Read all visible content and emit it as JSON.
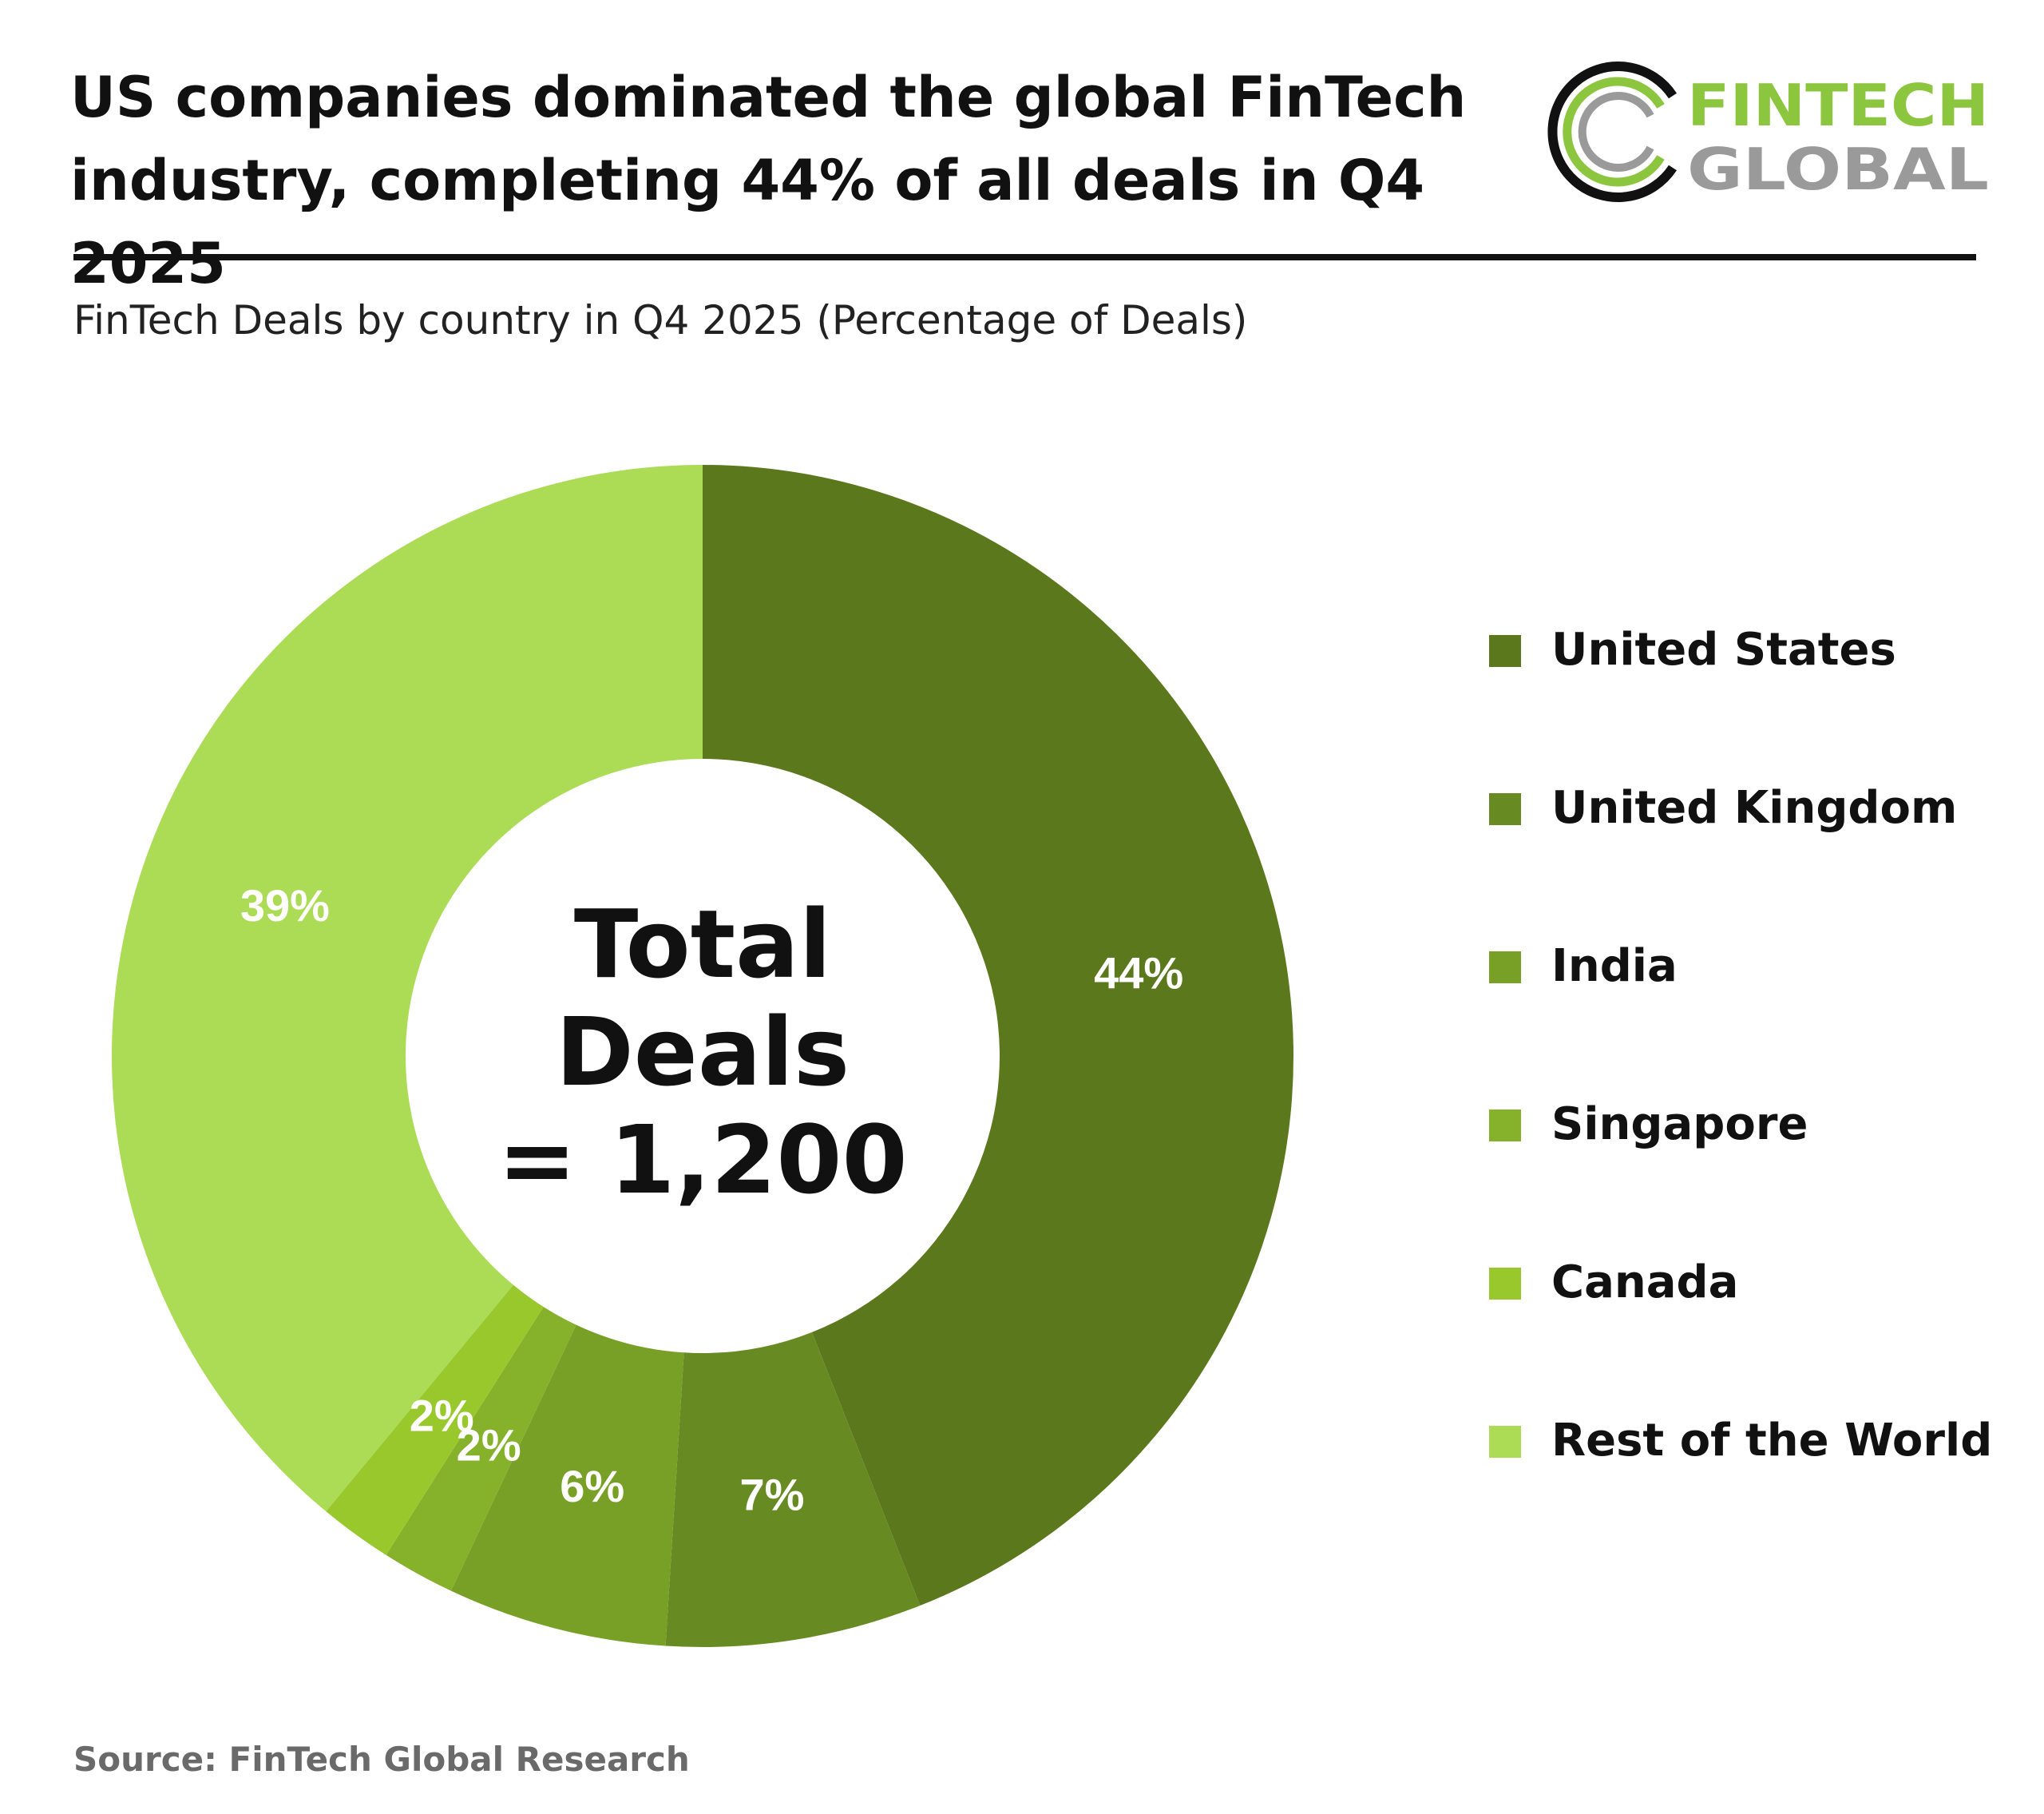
{
  "header": {
    "headline_line1": "US companies dominated the global FinTech",
    "headline_line2": "industry, completing 44% of all deals in Q4 2025",
    "subtitle": "FinTech Deals by country in Q4 2025 (Percentage of Deals)"
  },
  "logo": {
    "word1": "FINTECH",
    "word2": "GLOBAL",
    "color_dark": "#111111",
    "color_green": "#8cc63f",
    "color_grey": "#9a9a9a"
  },
  "center_label": {
    "line1": "Total",
    "line2": "Deals",
    "line3": "= 1,200"
  },
  "source": "Source: FinTech Global Research",
  "chart_data": {
    "type": "pie",
    "style": "donut",
    "start_angle_deg": 0,
    "direction": "clockwise",
    "legend_position": "right",
    "categories": [
      "United States",
      "United Kingdom",
      "India",
      "Singapore",
      "Canada",
      "Rest of the World"
    ],
    "values": [
      44,
      7,
      6,
      2,
      2,
      39
    ],
    "labels": [
      "44%",
      "7%",
      "6%",
      "2%",
      "2%",
      "39%"
    ],
    "colors": [
      "#5b781c",
      "#688a22",
      "#789f26",
      "#86b12b",
      "#98c82c",
      "#acdb56"
    ]
  }
}
